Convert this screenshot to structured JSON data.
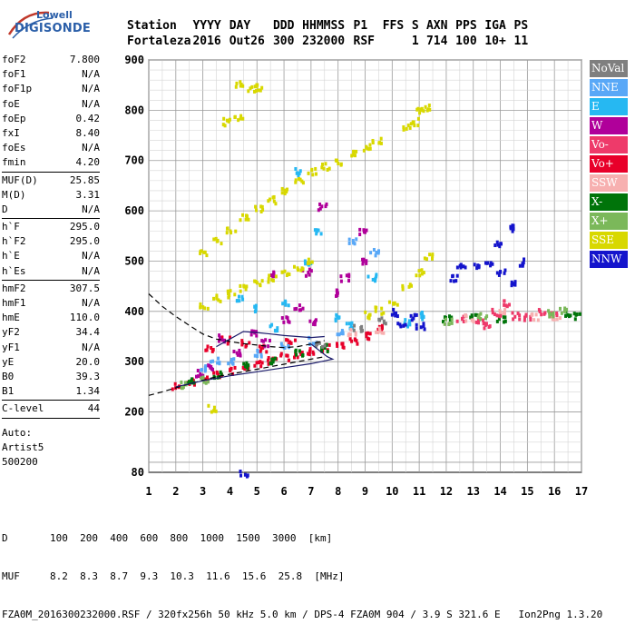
{
  "logo": {
    "brand": "Lowell",
    "product": "DIGISONDE"
  },
  "header": {
    "row1": [
      "Station",
      "YYYY",
      "DAY",
      "DDD",
      "HHMMSS",
      "P1",
      "FFS",
      "S",
      "AXN",
      "PPS",
      "IGA",
      "PS"
    ],
    "row2": [
      "Fortaleza",
      "2016",
      "Out26",
      "300",
      "232000",
      "RSF",
      "",
      "1",
      "714",
      "100",
      "10+",
      "11"
    ]
  },
  "params": {
    "group1": [
      {
        "k": "foF2",
        "v": "7.800"
      },
      {
        "k": "foF1",
        "v": "N/A"
      },
      {
        "k": "foF1p",
        "v": "N/A"
      },
      {
        "k": "foE",
        "v": "N/A"
      },
      {
        "k": "foEp",
        "v": "0.42"
      },
      {
        "k": "fxI",
        "v": "8.40"
      },
      {
        "k": "foEs",
        "v": "N/A"
      },
      {
        "k": "fmin",
        "v": "4.20"
      }
    ],
    "group2": [
      {
        "k": "MUF(D)",
        "v": "25.85"
      },
      {
        "k": "M(D)",
        "v": "3.31"
      },
      {
        "k": "D",
        "v": "N/A"
      }
    ],
    "group3": [
      {
        "k": "h`F",
        "v": "295.0"
      },
      {
        "k": "h`F2",
        "v": "295.0"
      },
      {
        "k": "h`E",
        "v": "N/A"
      },
      {
        "k": "h`Es",
        "v": "N/A"
      }
    ],
    "group4": [
      {
        "k": "hmF2",
        "v": "307.5"
      },
      {
        "k": "hmF1",
        "v": "N/A"
      },
      {
        "k": "hmE",
        "v": "110.0"
      },
      {
        "k": "yF2",
        "v": "34.4"
      },
      {
        "k": "yF1",
        "v": "N/A"
      },
      {
        "k": "yE",
        "v": "20.0"
      },
      {
        "k": "B0",
        "v": "39.3"
      },
      {
        "k": "B1",
        "v": "1.34"
      }
    ],
    "group5": [
      {
        "k": "C-level",
        "v": "44"
      }
    ],
    "auto": [
      "Auto:",
      "Artist5",
      "500200"
    ]
  },
  "legend": [
    {
      "label": "NoVal",
      "color": "#7f7f7f"
    },
    {
      "label": "NNE",
      "color": "#59a8f7"
    },
    {
      "label": "E",
      "color": "#26b8f2"
    },
    {
      "label": "W",
      "color": "#b0009a"
    },
    {
      "label": "Vo-",
      "color": "#ee3a6a"
    },
    {
      "label": "Vo+",
      "color": "#e8002a"
    },
    {
      "label": "SSW",
      "color": "#f7b0b0"
    },
    {
      "label": "X-",
      "color": "#00740a"
    },
    {
      "label": "X+",
      "color": "#7bb85a"
    },
    {
      "label": "SSE",
      "color": "#d8d800"
    },
    {
      "label": "NNW",
      "color": "#1414cc"
    }
  ],
  "footer": {
    "line1": "D       100  200  400  600  800  1000  1500  3000  [km]",
    "line2": "MUF     8.2  8.3  8.7  9.3  10.3  11.6  15.6  25.8  [MHz]",
    "line3": "FZA0M_2016300232000.RSF / 320fx256h 50 kHz 5.0 km / DPS-4 FZA0M 904 / 3.9 S 321.6 E   Ion2Png 1.3.20"
  },
  "chart_data": {
    "type": "scatter",
    "title": "",
    "xlabel": "",
    "ylabel": "",
    "xlim": [
      1,
      17
    ],
    "ylim": [
      80,
      900
    ],
    "xticks": [
      1,
      2,
      3,
      4,
      5,
      6,
      7,
      8,
      9,
      10,
      11,
      12,
      13,
      14,
      15,
      16,
      17
    ],
    "yticks": [
      80,
      200,
      300,
      400,
      500,
      600,
      700,
      800,
      900
    ],
    "grid": true,
    "series": [
      {
        "name": "Vo+",
        "color": "#e8002a",
        "points": [
          [
            2.0,
            255
          ],
          [
            2.5,
            262
          ],
          [
            3.0,
            270
          ],
          [
            3.5,
            278
          ],
          [
            4.0,
            285
          ],
          [
            4.5,
            292
          ],
          [
            5.0,
            300
          ],
          [
            5.5,
            305
          ],
          [
            6.0,
            312
          ],
          [
            6.5,
            318
          ],
          [
            7.0,
            325
          ],
          [
            7.5,
            330
          ],
          [
            8.0,
            338
          ],
          [
            8.5,
            346
          ],
          [
            9.0,
            355
          ],
          [
            9.5,
            368
          ],
          [
            3.2,
            330
          ],
          [
            3.8,
            345
          ],
          [
            4.5,
            340
          ],
          [
            5.2,
            330
          ],
          [
            6.2,
            340
          ]
        ]
      },
      {
        "name": "W",
        "color": "#b0009a",
        "points": [
          [
            2.8,
            280
          ],
          [
            3.2,
            295
          ],
          [
            3.6,
            350
          ],
          [
            4.2,
            320
          ],
          [
            4.8,
            360
          ],
          [
            5.3,
            340
          ],
          [
            6.0,
            385
          ],
          [
            6.5,
            410
          ],
          [
            7.0,
            380
          ],
          [
            7.8,
            440
          ],
          [
            8.2,
            470
          ],
          [
            9.0,
            500
          ],
          [
            5.5,
            480
          ],
          [
            8.9,
            560
          ],
          [
            7.4,
            610
          ],
          [
            6.8,
            480
          ]
        ]
      },
      {
        "name": "E",
        "color": "#26b8f2",
        "points": [
          [
            4.3,
            430
          ],
          [
            4.8,
            410
          ],
          [
            5.6,
            370
          ],
          [
            6.0,
            420
          ],
          [
            6.8,
            500
          ],
          [
            7.2,
            560
          ],
          [
            8.0,
            390
          ],
          [
            8.4,
            375
          ],
          [
            9.2,
            470
          ],
          [
            10.5,
            380
          ],
          [
            11.0,
            395
          ],
          [
            6.4,
            680
          ]
        ]
      },
      {
        "name": "SSE",
        "color": "#d8d800",
        "points": [
          [
            3.0,
            520
          ],
          [
            3.5,
            545
          ],
          [
            4.0,
            565
          ],
          [
            4.5,
            590
          ],
          [
            5.0,
            605
          ],
          [
            5.5,
            625
          ],
          [
            6.0,
            645
          ],
          [
            6.5,
            660
          ],
          [
            7.0,
            680
          ],
          [
            7.5,
            690
          ],
          [
            8.0,
            700
          ],
          [
            8.5,
            720
          ],
          [
            9.0,
            730
          ],
          [
            9.4,
            740
          ],
          [
            3.0,
            415
          ],
          [
            3.5,
            428
          ],
          [
            4.0,
            438
          ],
          [
            4.5,
            450
          ],
          [
            5.0,
            458
          ],
          [
            5.5,
            468
          ],
          [
            6.0,
            480
          ],
          [
            6.5,
            490
          ],
          [
            7.0,
            500
          ],
          [
            9.0,
            395
          ],
          [
            9.5,
            405
          ],
          [
            10.0,
            420
          ],
          [
            10.5,
            450
          ],
          [
            11.0,
            480
          ],
          [
            11.3,
            510
          ],
          [
            10.8,
            780
          ],
          [
            11.0,
            800
          ],
          [
            11.2,
            808
          ],
          [
            10.5,
            770
          ],
          [
            3.3,
            210
          ],
          [
            4.3,
            855
          ],
          [
            4.8,
            845
          ],
          [
            5.1,
            850
          ],
          [
            3.8,
            780
          ],
          [
            4.3,
            790
          ]
        ]
      },
      {
        "name": "NNW",
        "color": "#1414cc",
        "points": [
          [
            10.0,
            400
          ],
          [
            10.3,
            380
          ],
          [
            10.8,
            390
          ],
          [
            11.0,
            375
          ],
          [
            13.0,
            490
          ],
          [
            13.5,
            500
          ],
          [
            14.0,
            480
          ],
          [
            14.5,
            460
          ],
          [
            14.8,
            500
          ],
          [
            12.5,
            490
          ],
          [
            12.2,
            470
          ],
          [
            13.9,
            540
          ],
          [
            14.3,
            570
          ],
          [
            4.5,
            80
          ]
        ]
      },
      {
        "name": "X-",
        "color": "#00740a",
        "points": [
          [
            2.5,
            262
          ],
          [
            3.5,
            278
          ],
          [
            4.5,
            295
          ],
          [
            5.5,
            305
          ],
          [
            6.5,
            322
          ],
          [
            7.5,
            330
          ],
          [
            12.0,
            390
          ],
          [
            13.0,
            395
          ],
          [
            14.0,
            385
          ],
          [
            16.5,
            400
          ],
          [
            16.8,
            395
          ]
        ]
      },
      {
        "name": "Vo-",
        "color": "#ee3a6a",
        "points": [
          [
            12.5,
            390
          ],
          [
            13.2,
            385
          ],
          [
            13.8,
            400
          ],
          [
            14.5,
            395
          ],
          [
            15.0,
            390
          ],
          [
            15.5,
            400
          ],
          [
            16.0,
            395
          ],
          [
            14.2,
            420
          ],
          [
            13.5,
            375
          ]
        ]
      },
      {
        "name": "SSW",
        "color": "#f7b0b0",
        "points": [
          [
            12.8,
            390
          ],
          [
            14.0,
            402
          ],
          [
            15.2,
            392
          ],
          [
            16.0,
            388
          ],
          [
            8.5,
            360
          ],
          [
            9.5,
            365
          ]
        ]
      },
      {
        "name": "X+",
        "color": "#7bb85a",
        "points": [
          [
            12.0,
            385
          ],
          [
            13.3,
            392
          ],
          [
            15.8,
            398
          ],
          [
            16.3,
            405
          ],
          [
            2.2,
            258
          ],
          [
            3.0,
            268
          ]
        ]
      },
      {
        "name": "NNE",
        "color": "#59a8f7",
        "points": [
          [
            3.0,
            290
          ],
          [
            4.0,
            305
          ],
          [
            5.0,
            320
          ],
          [
            6.0,
            335
          ],
          [
            7.0,
            345
          ],
          [
            8.0,
            360
          ],
          [
            9.3,
            520
          ],
          [
            8.5,
            540
          ],
          [
            3.4,
            305
          ]
        ]
      },
      {
        "name": "NoVal",
        "color": "#7f7f7f",
        "points": [
          [
            7.3,
            340
          ],
          [
            8.7,
            370
          ],
          [
            9.6,
            385
          ]
        ]
      }
    ],
    "curves": [
      {
        "name": "trace-upper",
        "color": "#000000",
        "dashed": true,
        "points": [
          [
            1.0,
            435
          ],
          [
            1.5,
            410
          ],
          [
            2.0,
            390
          ],
          [
            2.5,
            372
          ],
          [
            3.0,
            355
          ],
          [
            3.5,
            345
          ],
          [
            4.0,
            340
          ],
          [
            4.5,
            336
          ],
          [
            5.0,
            333
          ],
          [
            5.5,
            330
          ],
          [
            6.0,
            328
          ],
          [
            6.5,
            330
          ],
          [
            7.0,
            335
          ],
          [
            7.5,
            342
          ]
        ]
      },
      {
        "name": "trace-lower",
        "color": "#000000",
        "dashed": true,
        "points": [
          [
            1.0,
            233
          ],
          [
            1.5,
            240
          ],
          [
            2.0,
            248
          ],
          [
            2.5,
            256
          ],
          [
            3.0,
            263
          ],
          [
            3.5,
            270
          ],
          [
            4.0,
            275
          ],
          [
            4.5,
            280
          ],
          [
            5.0,
            285
          ],
          [
            5.5,
            290
          ],
          [
            6.0,
            295
          ],
          [
            6.5,
            300
          ],
          [
            7.0,
            305
          ],
          [
            7.5,
            310
          ]
        ]
      },
      {
        "name": "profile-lower",
        "color": "#1a1a6a",
        "dashed": false,
        "points": [
          [
            2.0,
            250
          ],
          [
            3.0,
            262
          ],
          [
            4.0,
            272
          ],
          [
            5.0,
            280
          ],
          [
            6.0,
            288
          ],
          [
            7.0,
            296
          ],
          [
            7.8,
            305
          ],
          [
            7.6,
            310
          ],
          [
            7.0,
            335
          ]
        ]
      },
      {
        "name": "profile-upper",
        "color": "#1a1a6a",
        "dashed": false,
        "points": [
          [
            3.5,
            330
          ],
          [
            4.0,
            345
          ],
          [
            4.5,
            360
          ],
          [
            5.0,
            358
          ],
          [
            5.5,
            355
          ],
          [
            6.0,
            352
          ],
          [
            6.5,
            350
          ],
          [
            7.0,
            348
          ],
          [
            7.5,
            350
          ]
        ]
      }
    ]
  }
}
